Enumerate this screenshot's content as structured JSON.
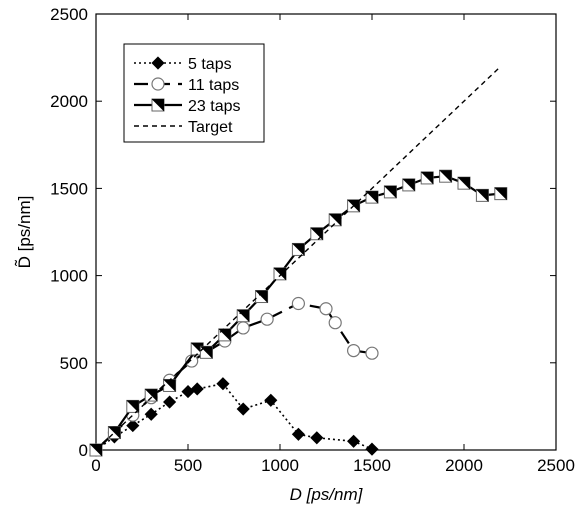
{
  "chart_data": {
    "type": "line",
    "xlabel": "D [ps/nm]",
    "ylabel": "D̃ [ps/nm]",
    "xlim": [
      0,
      2500
    ],
    "ylim": [
      0,
      2500
    ],
    "xticks": [
      0,
      500,
      1000,
      1500,
      2000,
      2500
    ],
    "yticks": [
      0,
      500,
      1000,
      1500,
      2000,
      2500
    ],
    "grid": false,
    "legend_position": "top-left",
    "series": [
      {
        "name": "5 taps",
        "marker": "diamond",
        "line": "dotted",
        "points": [
          [
            0,
            0
          ],
          [
            100,
            75
          ],
          [
            200,
            140
          ],
          [
            300,
            205
          ],
          [
            400,
            275
          ],
          [
            500,
            335
          ],
          [
            550,
            350
          ],
          [
            690,
            380
          ],
          [
            800,
            235
          ],
          [
            950,
            285
          ],
          [
            1100,
            90
          ],
          [
            1200,
            70
          ],
          [
            1400,
            50
          ],
          [
            1500,
            5
          ]
        ]
      },
      {
        "name": "11 taps",
        "marker": "circle",
        "line": "longdash",
        "points": [
          [
            0,
            0
          ],
          [
            100,
            100
          ],
          [
            200,
            200
          ],
          [
            300,
            300
          ],
          [
            400,
            400
          ],
          [
            520,
            510
          ],
          [
            700,
            625
          ],
          [
            800,
            700
          ],
          [
            930,
            750
          ],
          [
            1100,
            840
          ],
          [
            1250,
            810
          ],
          [
            1300,
            730
          ],
          [
            1400,
            570
          ],
          [
            1500,
            555
          ]
        ]
      },
      {
        "name": "23 taps",
        "marker": "half-square",
        "line": "solid",
        "points": [
          [
            0,
            0
          ],
          [
            100,
            100
          ],
          [
            200,
            250
          ],
          [
            300,
            315
          ],
          [
            400,
            370
          ],
          [
            550,
            580
          ],
          [
            600,
            560
          ],
          [
            700,
            660
          ],
          [
            800,
            770
          ],
          [
            900,
            880
          ],
          [
            1000,
            1010
          ],
          [
            1100,
            1150
          ],
          [
            1200,
            1240
          ],
          [
            1300,
            1320
          ],
          [
            1400,
            1400
          ],
          [
            1500,
            1450
          ],
          [
            1600,
            1480
          ],
          [
            1700,
            1520
          ],
          [
            1800,
            1560
          ],
          [
            1900,
            1570
          ],
          [
            2000,
            1530
          ],
          [
            2100,
            1460
          ],
          [
            2200,
            1470
          ]
        ]
      },
      {
        "name": "Target",
        "marker": "none",
        "line": "dashed",
        "points": [
          [
            0,
            0
          ],
          [
            2200,
            2200
          ]
        ]
      }
    ]
  }
}
